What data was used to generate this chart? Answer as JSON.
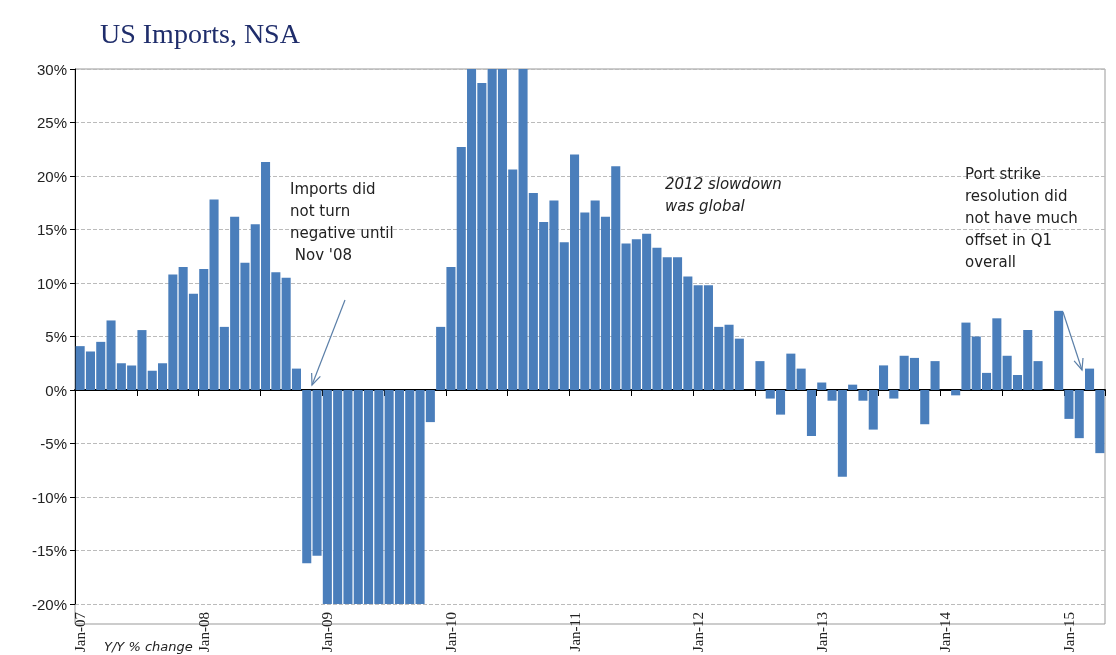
{
  "chart_data": {
    "type": "bar",
    "title": "US Imports, NSA",
    "categories": [
      "Jan-07",
      null,
      null,
      null,
      null,
      null,
      null,
      null,
      null,
      null,
      null,
      null,
      "Jan-08",
      null,
      null,
      null,
      null,
      null,
      null,
      null,
      null,
      null,
      null,
      null,
      "Jan-09",
      null,
      null,
      null,
      null,
      null,
      null,
      null,
      null,
      null,
      null,
      null,
      "Jan-10",
      null,
      null,
      null,
      null,
      null,
      null,
      null,
      null,
      null,
      null,
      null,
      "Jan-11",
      null,
      null,
      null,
      null,
      null,
      null,
      null,
      null,
      null,
      null,
      null,
      "Jan-12",
      null,
      null,
      null,
      null,
      null,
      null,
      null,
      null,
      null,
      null,
      null,
      "Jan-13",
      null,
      null,
      null,
      null,
      null,
      null,
      null,
      null,
      null,
      null,
      null,
      "Jan-14",
      null,
      null,
      null,
      null,
      null,
      null,
      null,
      null,
      null,
      null,
      null,
      "Jan-15",
      null,
      null,
      null
    ],
    "values": [
      4.1,
      3.6,
      4.5,
      6.5,
      2.5,
      2.3,
      5.6,
      1.8,
      2.5,
      10.8,
      11.5,
      9.0,
      11.3,
      17.8,
      5.9,
      16.2,
      11.9,
      15.5,
      21.3,
      11.0,
      10.5,
      2.0,
      -16.2,
      -15.5,
      -20,
      -20,
      -20,
      -20,
      -20,
      -20,
      -20,
      -20,
      -20,
      -20,
      -3.0,
      5.9,
      11.5,
      22.7,
      30,
      28.7,
      30,
      30,
      20.6,
      30,
      18.4,
      15.7,
      17.7,
      13.8,
      22.0,
      16.6,
      17.7,
      16.2,
      20.9,
      13.7,
      14.1,
      14.6,
      13.3,
      12.4,
      12.4,
      10.6,
      9.8,
      9.8,
      5.9,
      6.1,
      4.8,
      0,
      2.7,
      -0.8,
      -2.3,
      3.4,
      2.0,
      -4.3,
      0.7,
      -1.0,
      -8.1,
      0.5,
      -1.0,
      -3.7,
      2.3,
      -0.8,
      3.2,
      3.0,
      -3.2,
      2.7,
      0,
      -0.5,
      6.3,
      5.0,
      1.6,
      6.7,
      3.2,
      1.4,
      5.6,
      2.7,
      0,
      7.4,
      -2.7,
      -4.5,
      2.0,
      -5.9
    ],
    "color": "#4a7ebb",
    "ylim": [
      -20,
      30
    ],
    "yticks": [
      {
        "value": -20,
        "label": "-20%"
      },
      {
        "value": -15,
        "label": "-15%"
      },
      {
        "value": -10,
        "label": "-10%"
      },
      {
        "value": -5,
        "label": "-5%"
      },
      {
        "value": 0,
        "label": "0%"
      },
      {
        "value": 5,
        "label": "5%"
      },
      {
        "value": 10,
        "label": "10%"
      },
      {
        "value": 15,
        "label": "15%"
      },
      {
        "value": 20,
        "label": "20%"
      },
      {
        "value": 25,
        "label": "25%"
      },
      {
        "value": 30,
        "label": "30%"
      }
    ],
    "grid": "y",
    "annotations": [
      "Imports did not turn negative until Nov '08",
      "2012 slowdown was global",
      "Port strike resolution did not have much offset in Q1 overall",
      "Y/Y % change"
    ]
  }
}
